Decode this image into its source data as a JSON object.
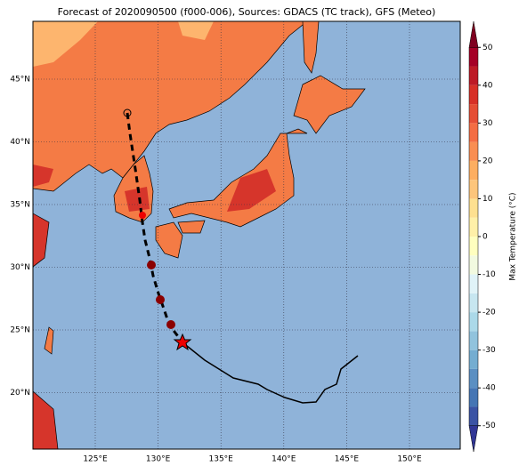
{
  "title": "Forecast of 2020090500 (f000-006), Sources: GDACS (TC track), GFS (Meteo)",
  "lon_ticks": [
    {
      "value": 125,
      "label": "125°E"
    },
    {
      "value": 130,
      "label": "130°E"
    },
    {
      "value": 135,
      "label": "135°E"
    },
    {
      "value": 140,
      "label": "140°E"
    },
    {
      "value": 145,
      "label": "145°E"
    },
    {
      "value": 150,
      "label": "150°E"
    }
  ],
  "lat_ticks": [
    {
      "value": 45,
      "label": "45°N"
    },
    {
      "value": 40,
      "label": "40°N"
    },
    {
      "value": 35,
      "label": "35°N"
    },
    {
      "value": 30,
      "label": "30°N"
    },
    {
      "value": 25,
      "label": "25°N"
    },
    {
      "value": 20,
      "label": "20°N"
    }
  ],
  "colorbar": {
    "label": "Max Temperature (°C)",
    "ticks": [
      -50,
      -40,
      -30,
      -20,
      -10,
      0,
      10,
      20,
      30,
      40,
      50
    ],
    "lim": [
      -55,
      55
    ],
    "colors": [
      "#313695",
      "#3b53a4",
      "#4575b4",
      "#5b8fc2",
      "#74add1",
      "#91c3dd",
      "#abd9e9",
      "#c7e6f0",
      "#e0f3f8",
      "#f2fae0",
      "#ffffbf",
      "#fff0a8",
      "#fee090",
      "#fdc57b",
      "#fdae61",
      "#f98e52",
      "#f46d43",
      "#e54e35",
      "#d73027",
      "#bd1a26",
      "#a50026",
      "#7f0020"
    ]
  }
}
